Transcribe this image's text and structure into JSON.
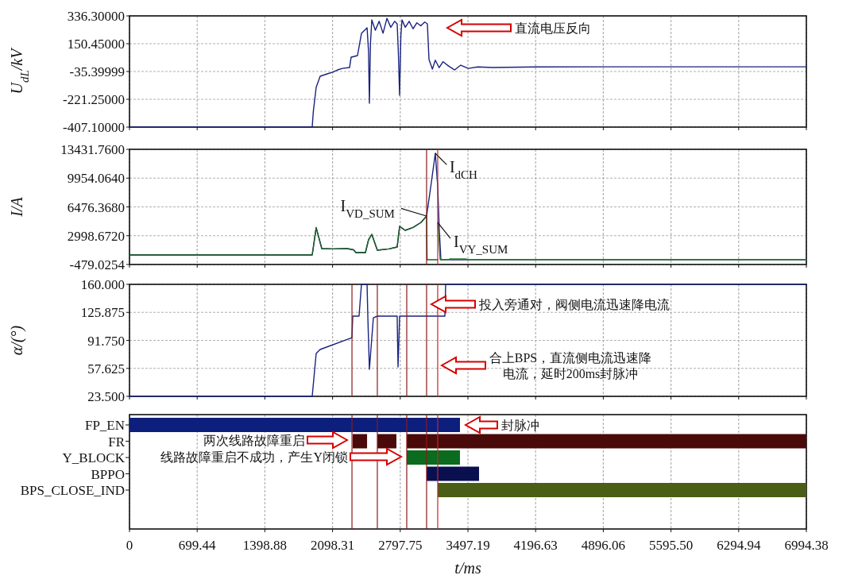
{
  "chart_data": [
    {
      "type": "line",
      "ylabel": "U$_{dL}$/kV",
      "xlim": [
        0,
        6994.38
      ],
      "xticks": [
        0,
        699.44,
        1398.88,
        2098.31,
        2797.75,
        3497.19,
        4196.63,
        4896.06,
        5595.5,
        6294.94,
        6994.38
      ],
      "ylim": [
        -407.1,
        336.3
      ],
      "yticks": [
        {
          "value": 336.3,
          "label": "336.30000"
        },
        {
          "value": 150.45,
          "label": "150.45000"
        },
        -35.39999,
        {
          "value": -221.25,
          "label": "-221.25000"
        },
        {
          "value": -407.1,
          "label": "-407.10000"
        }
      ],
      "grid": true,
      "tick_labels": "y",
      "x": [
        0,
        1888,
        1900,
        1929,
        1970,
        2050,
        2100,
        2150,
        2200,
        2274,
        2290,
        2356,
        2397,
        2455,
        2470,
        2479,
        2490,
        2504,
        2540,
        2580,
        2620,
        2660,
        2700,
        2740,
        2766,
        2778,
        2791,
        2804,
        2816,
        2850,
        2890,
        2930,
        2970,
        3010,
        3050,
        3078,
        3095,
        3130,
        3160,
        3200,
        3240,
        3300,
        3360,
        3423,
        3500,
        3600,
        3752,
        4200,
        5000,
        6000,
        6994.38
      ],
      "series": [
        {
          "color": "#1a237e",
          "values": [
            -407.1,
            -407.1,
            -300,
            -141.6,
            -67.3,
            -50,
            -40,
            -25,
            -15,
            -9,
            60,
            70.8,
            219,
            257,
            100,
            -248,
            150,
            310,
            240,
            300,
            220,
            320,
            260,
            300,
            283,
            100,
            -195,
            200,
            310,
            260,
            300,
            250,
            290,
            270,
            295,
            283,
            44,
            -20,
            40,
            -10,
            30,
            0,
            -25,
            7,
            -15,
            -5,
            -9,
            -5,
            -4,
            -4,
            -4
          ]
        }
      ],
      "annotations": [
        "直流电压反向"
      ]
    },
    {
      "type": "line",
      "ylabel": "I/A",
      "xlim": [
        0,
        6994.38
      ],
      "xticks": [
        0,
        699.44,
        1398.88,
        2098.31,
        2797.75,
        3497.19,
        4196.63,
        4896.06,
        5595.5,
        6294.94,
        6994.38
      ],
      "ylim": [
        -479.0254,
        13431.76
      ],
      "yticks": [
        {
          "value": 13431.76,
          "label": "13431.7600"
        },
        {
          "value": 9954.064,
          "label": "9954.0640"
        },
        {
          "value": 6476.368,
          "label": "6476.3680"
        },
        {
          "value": 2998.672,
          "label": "2998.6720"
        },
        -479.0254
      ],
      "grid": true,
      "tick_labels": "y",
      "series": [
        {
          "name": "I$_{dCH}$",
          "color": "#1a237e",
          "x": [
            0,
            1888,
            1929,
            1987,
            2100,
            2250,
            2315,
            2340,
            2438,
            2470,
            2504,
            2561,
            2680,
            2766,
            2791,
            2849,
            2930,
            3013,
            3070,
            3120,
            3160,
            3185,
            3200,
            3218,
            3260,
            6994.38
          ],
          "values": [
            671,
            671,
            3974,
            1439,
            1400,
            1439,
            1300,
            959,
            959,
            2500,
            3166,
            1247,
            1400,
            1631,
            4126,
            3646,
            4000,
            4605,
            5373,
            9500,
            12952,
            9000,
            4000,
            96,
            96,
            96
          ]
        },
        {
          "name": "I$_{VD_SUM}$",
          "color": "#1b5e20",
          "x": [
            0,
            1888,
            1929,
            1987,
            2100,
            2250,
            2315,
            2340,
            2438,
            2470,
            2504,
            2561,
            2680,
            2766,
            2791,
            2849,
            2930,
            3013,
            3070,
            3075,
            3185
          ],
          "values": [
            671,
            671,
            3974,
            1439,
            1400,
            1439,
            1300,
            959,
            959,
            2500,
            3166,
            1247,
            1400,
            1631,
            4126,
            3646,
            4000,
            4605,
            5373,
            96,
            96
          ]
        },
        {
          "name": "I$_{VY_SUM}$",
          "color": "#2e7d32",
          "x": [
            3185,
            3210,
            3300,
            3308,
            3480,
            3488,
            6994.38
          ],
          "values": [
            4605,
            96,
            96,
            192,
            192,
            96,
            96
          ]
        }
      ],
      "ref_lines": [
        {
          "axis": "x",
          "value": 3070,
          "color": "#8b1a1a"
        },
        {
          "axis": "x",
          "value": 3185,
          "color": "#c62828"
        }
      ]
    },
    {
      "type": "line",
      "ylabel": "α/(°)",
      "xlim": [
        0,
        6994.38
      ],
      "xticks": [
        0,
        699.44,
        1398.88,
        2098.31,
        2797.75,
        3497.19,
        4196.63,
        4896.06,
        5595.5,
        6294.94,
        6994.38
      ],
      "ylim": [
        23.5,
        160
      ],
      "yticks": [
        {
          "value": 160,
          "label": "160.000"
        },
        125.875,
        {
          "value": 91.75,
          "label": "91.750"
        },
        57.625,
        {
          "value": 23.5,
          "label": "23.500"
        }
      ],
      "grid": true,
      "tick_labels": "y",
      "x": [
        0,
        1888,
        1929,
        1970,
        2299,
        2307,
        2372,
        2397,
        2455,
        2463,
        2479,
        2520,
        2561,
        2766,
        2775,
        2791,
        3259,
        3267,
        6994.38
      ],
      "series": [
        {
          "color": "#1a237e",
          "values": [
            23.5,
            23.5,
            75.8,
            80.6,
            95.1,
            121.3,
            121.3,
            160,
            160,
            120,
            56.4,
            119.3,
            121.3,
            121.3,
            59.3,
            121.3,
            121.3,
            160,
            160
          ]
        }
      ],
      "ref_lines": [
        {
          "axis": "x",
          "value": 2299,
          "color": "#8b1a1a"
        },
        {
          "axis": "x",
          "value": 2561,
          "color": "#8b1a1a"
        },
        {
          "axis": "x",
          "value": 2865,
          "color": "#8b1a1a"
        },
        {
          "axis": "x",
          "value": 3070,
          "color": "#8b1a1a"
        },
        {
          "axis": "x",
          "value": 3185,
          "color": "#c62828"
        }
      ],
      "annotations": [
        "投入旁通对，阀侧电流迅速降电流",
        "合上BPS，直流侧电流迅速降电流，延时200ms封脉冲"
      ]
    },
    {
      "type": "bar",
      "orientation": "horizontal",
      "xlabel": "t/ms",
      "xlim": [
        0,
        6994.38
      ],
      "xticks": [
        0,
        699.44,
        1398.88,
        2098.31,
        2797.75,
        3497.19,
        4196.63,
        4896.06,
        {
          "value": 5595.5,
          "label": "5595.50"
        },
        6294.94,
        6994.38
      ],
      "grid": "x",
      "categories": [
        "FP_EN",
        "FR",
        "Y_BLOCK",
        "BPPO",
        "BPS_CLOSE_IND"
      ],
      "series": [
        {
          "colors": [
            "#0d1f7d",
            "#4a0a0a",
            "#0b6b1e",
            "#0a0f4f",
            "#4b5e16"
          ],
          "base": [
            0,
            2307,
            2865,
            3070,
            3185
          ],
          "values": [
            3415,
            148,
            550,
            542,
            3809.38
          ]
        },
        {
          "color": "#4a0a0a",
          "base": [
            null,
            2561,
            null,
            null,
            null
          ],
          "values": [
            null,
            197,
            null,
            null,
            null
          ]
        },
        {
          "color": "#4a0a0a",
          "base": [
            null,
            2865,
            null,
            null,
            null
          ],
          "values": [
            null,
            4129.38,
            null,
            null,
            null
          ]
        }
      ],
      "ref_lines": [
        {
          "axis": "x",
          "value": 2299,
          "color": "#8b1a1a"
        },
        {
          "axis": "x",
          "value": 2561,
          "color": "#8b1a1a"
        },
        {
          "axis": "x",
          "value": 2865,
          "color": "#8b1a1a"
        },
        {
          "axis": "x",
          "value": 3070,
          "color": "#8b1a1a"
        },
        {
          "axis": "x",
          "value": 3185,
          "color": "#c62828"
        }
      ],
      "annotations": [
        "封脉冲",
        "两次线路故障重启",
        "线路故障重启不成功，产生Y闭锁"
      ]
    }
  ]
}
